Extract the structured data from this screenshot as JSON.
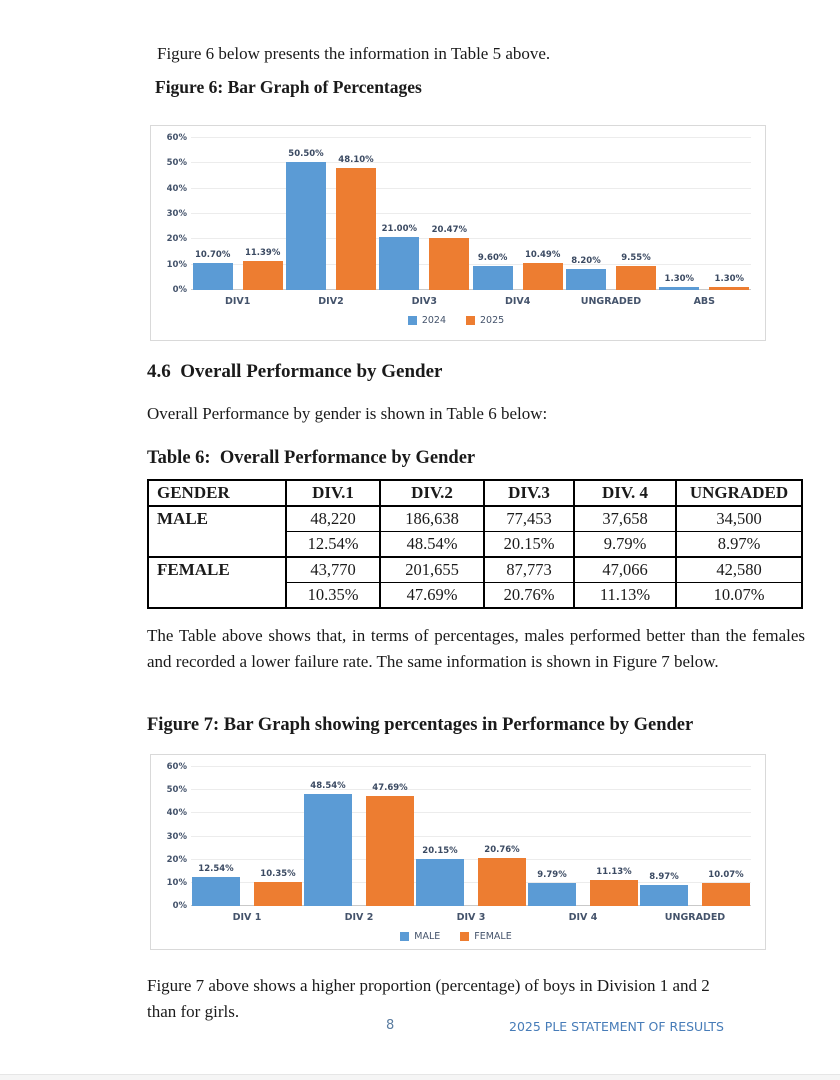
{
  "page": {
    "intro_text": "Figure 6 below presents the information in Table 5 above.",
    "figure6_heading": "Figure 6: Bar Graph of Percentages",
    "section_heading": "4.6  Overall Performance by Gender",
    "section_text": "Overall Performance by gender is shown in Table 6 below:",
    "table6_heading": "Table 6:  Overall Performance by Gender",
    "analysis_text": "The Table above shows that, in terms of percentages, males performed better than the females and recorded a lower failure rate. The same information is shown in Figure 7 below.",
    "figure7_heading": "Figure 7: Bar Graph showing percentages in Performance by Gender",
    "closing_text": "Figure 7 above shows a higher proportion (percentage) of boys in Division 1 and 2 than for girls.",
    "page_number": "8",
    "footer_right": "2025 PLE STATEMENT OF RESULTS"
  },
  "table6": {
    "headers": [
      "GENDER",
      "DIV.1",
      "DIV.2",
      "DIV.3",
      "DIV. 4",
      "UNGRADED"
    ],
    "rows": [
      {
        "gender": "MALE",
        "counts": [
          "48,220",
          "186,638",
          "77,453",
          "37,658",
          "34,500"
        ],
        "percents": [
          "12.54%",
          "48.54%",
          "20.15%",
          "9.79%",
          "8.97%"
        ]
      },
      {
        "gender": "FEMALE",
        "counts": [
          "43,770",
          "201,655",
          "87,773",
          "47,066",
          "42,580"
        ],
        "percents": [
          "10.35%",
          "47.69%",
          "20.76%",
          "11.13%",
          "10.07%"
        ]
      }
    ]
  },
  "chart_data": [
    {
      "type": "bar",
      "title": "Figure 6: Bar Graph of Percentages",
      "categories": [
        "DIV1",
        "DIV2",
        "DIV3",
        "DIV4",
        "UNGRADED",
        "ABS"
      ],
      "series": [
        {
          "name": "2024",
          "color": "#5B9BD5",
          "values": [
            10.7,
            50.5,
            21.0,
            9.6,
            8.2,
            1.3
          ]
        },
        {
          "name": "2025",
          "color": "#ED7D31",
          "values": [
            11.39,
            48.1,
            20.47,
            10.49,
            9.55,
            1.3
          ]
        }
      ],
      "xlabel": "",
      "ylabel": "",
      "ylim": [
        0,
        60
      ],
      "yticks": [
        "0%",
        "10%",
        "20%",
        "30%",
        "40%",
        "50%",
        "60%"
      ],
      "grid": true,
      "legend_position": "bottom"
    },
    {
      "type": "bar",
      "title": "Figure 7: Bar Graph showing percentages in Performance by Gender",
      "categories": [
        "DIV 1",
        "DIV 2",
        "DIV 3",
        "DIV 4",
        "UNGRADED"
      ],
      "series": [
        {
          "name": "MALE",
          "color": "#5B9BD5",
          "values": [
            12.54,
            48.54,
            20.15,
            9.79,
            8.97
          ]
        },
        {
          "name": "FEMALE",
          "color": "#ED7D31",
          "values": [
            10.35,
            47.69,
            20.76,
            11.13,
            10.07
          ]
        }
      ],
      "xlabel": "",
      "ylabel": "",
      "ylim": [
        0,
        60
      ],
      "yticks": [
        "0%",
        "10%",
        "20%",
        "30%",
        "40%",
        "50%",
        "60%"
      ],
      "grid": true,
      "legend_position": "bottom"
    }
  ],
  "colors": {
    "series_blue": "#5B9BD5",
    "series_orange": "#ED7D31",
    "footer_blue": "#477cb8",
    "chart_text": "#44536b"
  }
}
